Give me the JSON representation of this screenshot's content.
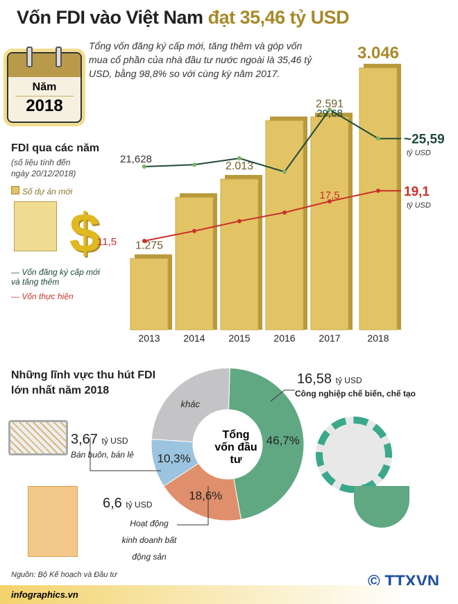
{
  "title": {
    "main": "Vốn FDI vào Việt Nam",
    "highlight": "đạt 35,46 tỷ USD"
  },
  "calendar": {
    "label": "Năm",
    "year": "2018"
  },
  "intro": "Tổng vốn đăng ký cấp mới, tăng thêm và góp vốn mua cổ phần của nhà đầu tư nước ngoài là 35,46 tỷ USD, bằng 98,8% so với cùng kỳ năm 2017.",
  "fdi": {
    "title": "FDI qua các năm",
    "subtitle": "(số liệu tính đến ngày 20/12/2018)"
  },
  "legend": {
    "projects": "Số dự án mới",
    "registered": "Vốn đăng ký cấp mới và tăng thêm",
    "disbursed": "Vốn thực hiện"
  },
  "colors": {
    "bar": "#e3c465",
    "registered": "#1f4a3a",
    "disbursed": "#c8322b",
    "gold": "#a8892a"
  },
  "chart_data": [
    {
      "type": "bar+line",
      "categories": [
        "2013",
        "2014",
        "2015",
        "2016",
        "2017",
        "2018"
      ],
      "series": [
        {
          "name": "Số dự án mới",
          "type": "bar",
          "values": [
            1275,
            1843,
            2013,
            2556,
            2591,
            3046
          ],
          "labels": [
            "1.275",
            "",
            "2.013",
            "",
            "2.591",
            "3.046"
          ]
        },
        {
          "name": "Vốn đăng ký cấp mới và tăng thêm",
          "type": "line",
          "values": [
            21.628,
            21.9,
            22.8,
            20.9,
            29.68,
            25.59
          ],
          "labels": [
            "21,628",
            "",
            "",
            "",
            "29,68",
            "~25,59"
          ]
        },
        {
          "name": "Vốn thực hiện",
          "type": "line",
          "values": [
            11.5,
            13,
            14.5,
            15.8,
            17.5,
            19.1
          ],
          "labels": [
            "11,5",
            "",
            "",
            "",
            "17,5",
            "19,1"
          ]
        }
      ],
      "unit": "tỷ USD"
    },
    {
      "type": "pie",
      "title": "Những lĩnh vực thu hút FDI lớn nhất năm 2018",
      "center_label": "Tổng vốn đầu tư",
      "slices": [
        {
          "name": "Công nghiệp chế biến, chế tạo",
          "percent": 46.7,
          "label": "46,7%",
          "value": "16,58",
          "color": "#5fa882"
        },
        {
          "name": "Hoạt động kinh doanh bất động sản",
          "percent": 18.6,
          "label": "18,6%",
          "value": "6,6",
          "color": "#e08f6c"
        },
        {
          "name": "Bán buôn, bán lẻ",
          "percent": 10.3,
          "label": "10,3%",
          "value": "3,67",
          "color": "#9cc3e0"
        },
        {
          "name": "khác",
          "percent": 24.4,
          "label": "khác",
          "color": "#c4c4c6"
        }
      ]
    }
  ],
  "section2": {
    "title": "Những lĩnh vực thu hút FDI lớn nhất năm 2018"
  },
  "unit": "tỷ USD",
  "source": "Nguồn: Bộ Kế hoạch và Đầu tư",
  "footer": "infographics.vn",
  "logo": "TTXVN"
}
